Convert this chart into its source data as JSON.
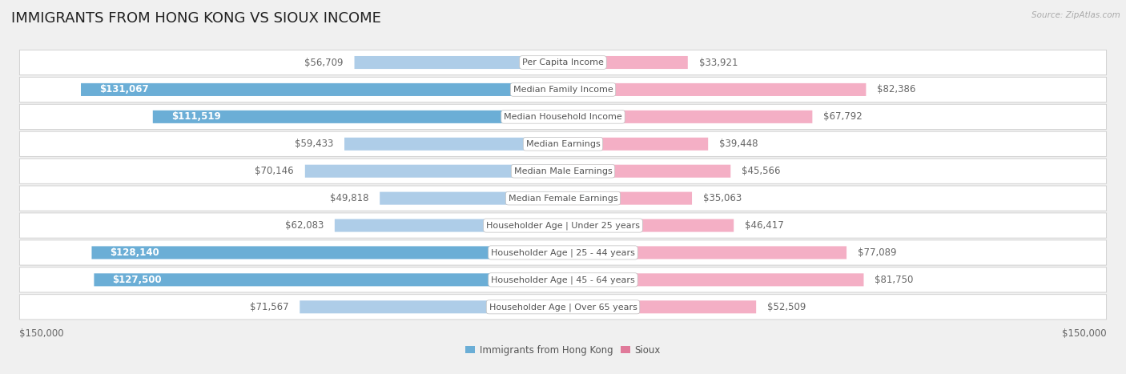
{
  "title": "IMMIGRANTS FROM HONG KONG VS SIOUX INCOME",
  "source": "Source: ZipAtlas.com",
  "categories": [
    "Per Capita Income",
    "Median Family Income",
    "Median Household Income",
    "Median Earnings",
    "Median Male Earnings",
    "Median Female Earnings",
    "Householder Age | Under 25 years",
    "Householder Age | 25 - 44 years",
    "Householder Age | 45 - 64 years",
    "Householder Age | Over 65 years"
  ],
  "hk_values": [
    56709,
    131067,
    111519,
    59433,
    70146,
    49818,
    62083,
    128140,
    127500,
    71567
  ],
  "sioux_values": [
    33921,
    82386,
    67792,
    39448,
    45566,
    35063,
    46417,
    77089,
    81750,
    52509
  ],
  "hk_labels": [
    "$56,709",
    "$131,067",
    "$111,519",
    "$59,433",
    "$70,146",
    "$49,818",
    "$62,083",
    "$128,140",
    "$127,500",
    "$71,567"
  ],
  "sioux_labels": [
    "$33,921",
    "$82,386",
    "$67,792",
    "$39,448",
    "$45,566",
    "$35,063",
    "$46,417",
    "$77,089",
    "$81,750",
    "$52,509"
  ],
  "hk_color_dark": "#6baed6",
  "hk_color_light": "#aecde8",
  "sioux_color_dark": "#e07a9a",
  "sioux_color_light": "#f4afc5",
  "max_val": 150000,
  "xlabel_left": "$150,000",
  "xlabel_right": "$150,000",
  "legend_hk": "Immigrants from Hong Kong",
  "legend_sioux": "Sioux",
  "background_color": "#f0f0f0",
  "row_bg": "#ffffff",
  "row_border": "#cccccc",
  "title_fontsize": 13,
  "label_fontsize": 8.5,
  "value_fontsize": 8.5,
  "category_fontsize": 8,
  "hk_threshold": 100000
}
